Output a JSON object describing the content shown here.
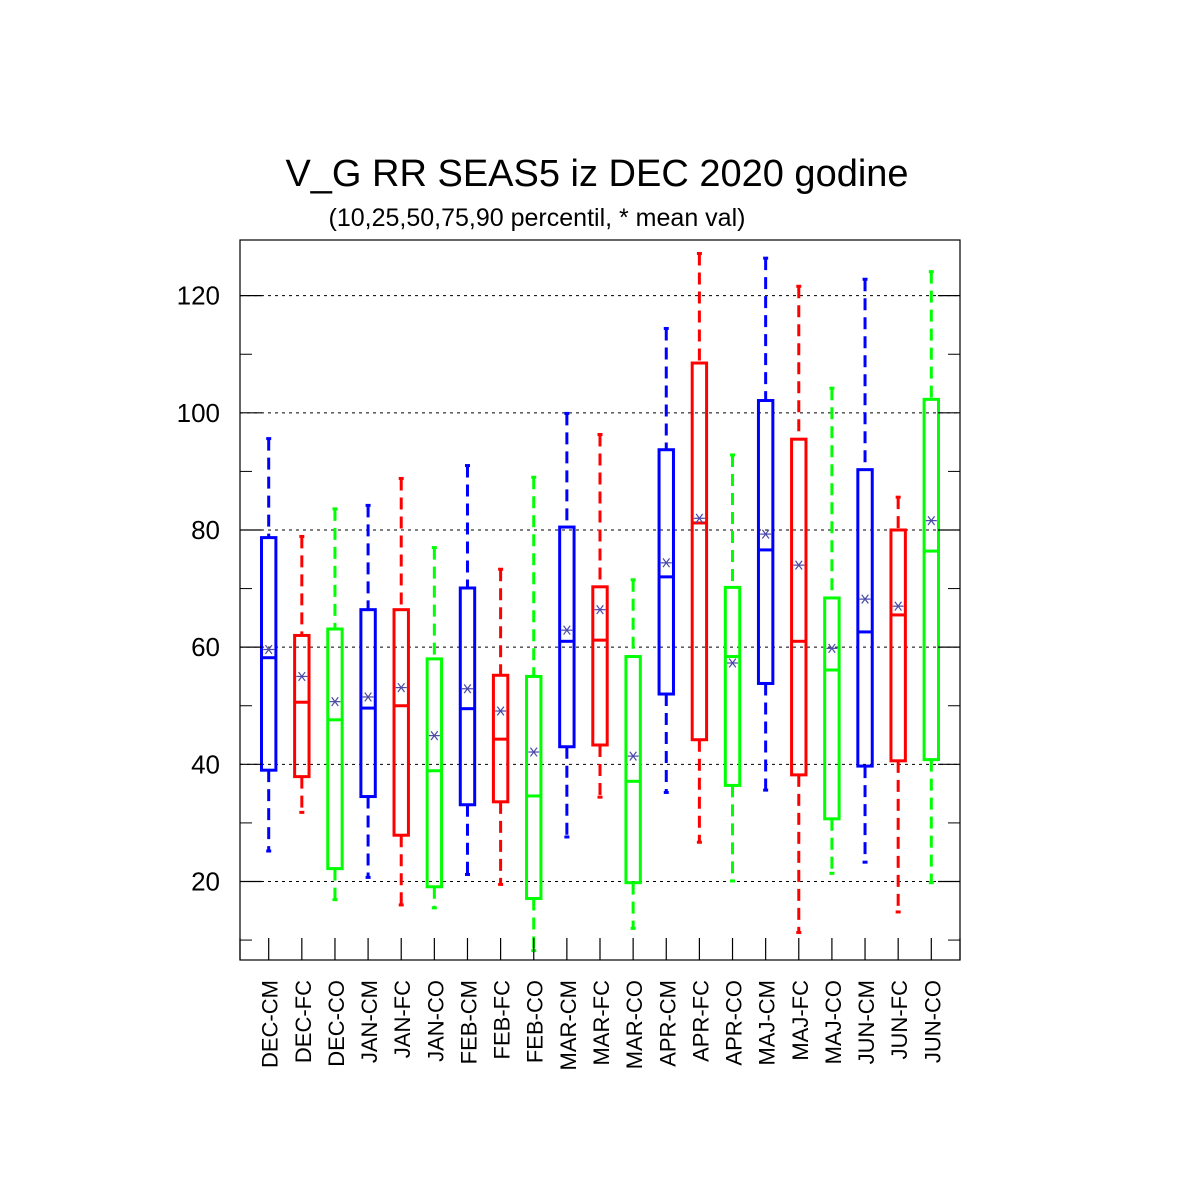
{
  "chart_data": {
    "type": "box",
    "title": "V_G RR SEAS5 iz DEC 2020 godine",
    "subtitle": "(10,25,50,75,90 percentil, * mean val)",
    "xlabel": "",
    "ylabel": "",
    "ylim": [
      6.6,
      129.5
    ],
    "y_ticks": [
      20,
      40,
      60,
      80,
      100,
      120
    ],
    "grid": "horizontal-dashed",
    "colors": {
      "CM": "#0000ff",
      "FC": "#ff0000",
      "CO": "#00ff00"
    },
    "categories": [
      "DEC-CM",
      "DEC-FC",
      "DEC-CO",
      "JAN-CM",
      "JAN-FC",
      "JAN-CO",
      "FEB-CM",
      "FEB-FC",
      "FEB-CO",
      "MAR-CM",
      "MAR-FC",
      "MAR-CO",
      "APR-CM",
      "APR-FC",
      "APR-CO",
      "MAJ-CM",
      "MAJ-FC",
      "MAJ-CO",
      "JUN-CM",
      "JUN-FC",
      "JUN-CO"
    ],
    "boxes": [
      {
        "label": "DEC-CM",
        "group": "CM",
        "p10": 25.2,
        "p25": 39.0,
        "p50": 58.2,
        "p75": 78.7,
        "p90": 95.6,
        "mean": 59.6
      },
      {
        "label": "DEC-FC",
        "group": "FC",
        "p10": 31.8,
        "p25": 37.9,
        "p50": 50.6,
        "p75": 62.0,
        "p90": 78.9,
        "mean": 55.0
      },
      {
        "label": "DEC-CO",
        "group": "CO",
        "p10": 16.9,
        "p25": 22.2,
        "p50": 47.6,
        "p75": 63.1,
        "p90": 83.6,
        "mean": 50.7
      },
      {
        "label": "JAN-CM",
        "group": "CM",
        "p10": 20.7,
        "p25": 34.5,
        "p50": 49.6,
        "p75": 66.4,
        "p90": 84.2,
        "mean": 51.5
      },
      {
        "label": "JAN-FC",
        "group": "FC",
        "p10": 16.0,
        "p25": 27.9,
        "p50": 50.0,
        "p75": 66.4,
        "p90": 88.8,
        "mean": 53.1
      },
      {
        "label": "JAN-CO",
        "group": "CO",
        "p10": 15.5,
        "p25": 19.1,
        "p50": 38.9,
        "p75": 58.0,
        "p90": 77.0,
        "mean": 44.9
      },
      {
        "label": "FEB-CM",
        "group": "CM",
        "p10": 21.2,
        "p25": 33.1,
        "p50": 49.5,
        "p75": 70.1,
        "p90": 91.0,
        "mean": 52.9
      },
      {
        "label": "FEB-FC",
        "group": "FC",
        "p10": 19.5,
        "p25": 33.6,
        "p50": 44.3,
        "p75": 55.2,
        "p90": 73.3,
        "mean": 49.1
      },
      {
        "label": "FEB-CO",
        "group": "CO",
        "p10": 8.2,
        "p25": 17.1,
        "p50": 34.6,
        "p75": 55.0,
        "p90": 89.0,
        "mean": 42.1
      },
      {
        "label": "MAR-CM",
        "group": "CM",
        "p10": 27.6,
        "p25": 43.0,
        "p50": 61.0,
        "p75": 80.5,
        "p90": 99.9,
        "mean": 62.9
      },
      {
        "label": "MAR-FC",
        "group": "FC",
        "p10": 34.4,
        "p25": 43.3,
        "p50": 61.2,
        "p75": 70.3,
        "p90": 96.3,
        "mean": 66.4
      },
      {
        "label": "MAR-CO",
        "group": "CO",
        "p10": 12.0,
        "p25": 19.8,
        "p50": 37.1,
        "p75": 58.4,
        "p90": 71.5,
        "mean": 41.4
      },
      {
        "label": "APR-CM",
        "group": "CM",
        "p10": 35.2,
        "p25": 52.0,
        "p50": 72.0,
        "p75": 93.7,
        "p90": 114.4,
        "mean": 74.4
      },
      {
        "label": "APR-FC",
        "group": "FC",
        "p10": 26.7,
        "p25": 44.2,
        "p50": 81.2,
        "p75": 108.5,
        "p90": 127.2,
        "mean": 82.0
      },
      {
        "label": "APR-CO",
        "group": "CO",
        "p10": 20.1,
        "p25": 36.4,
        "p50": 58.4,
        "p75": 70.2,
        "p90": 92.8,
        "mean": 57.3
      },
      {
        "label": "MAJ-CM",
        "group": "CM",
        "p10": 35.6,
        "p25": 53.8,
        "p50": 76.6,
        "p75": 102.1,
        "p90": 126.4,
        "mean": 79.3
      },
      {
        "label": "MAJ-FC",
        "group": "FC",
        "p10": 11.3,
        "p25": 38.2,
        "p50": 61.0,
        "p75": 95.5,
        "p90": 121.6,
        "mean": 74.0
      },
      {
        "label": "MAJ-CO",
        "group": "CO",
        "p10": 21.4,
        "p25": 30.7,
        "p50": 56.1,
        "p75": 68.4,
        "p90": 104.2,
        "mean": 59.8
      },
      {
        "label": "JUN-CM",
        "group": "CM",
        "p10": 23.3,
        "p25": 39.7,
        "p50": 62.6,
        "p75": 90.3,
        "p90": 122.8,
        "mean": 68.2
      },
      {
        "label": "JUN-FC",
        "group": "FC",
        "p10": 14.8,
        "p25": 40.6,
        "p50": 65.5,
        "p75": 80.0,
        "p90": 85.6,
        "mean": 67.0
      },
      {
        "label": "JUN-CO",
        "group": "CO",
        "p10": 19.8,
        "p25": 40.8,
        "p50": 76.4,
        "p75": 102.3,
        "p90": 124.1,
        "mean": 81.6
      }
    ]
  }
}
